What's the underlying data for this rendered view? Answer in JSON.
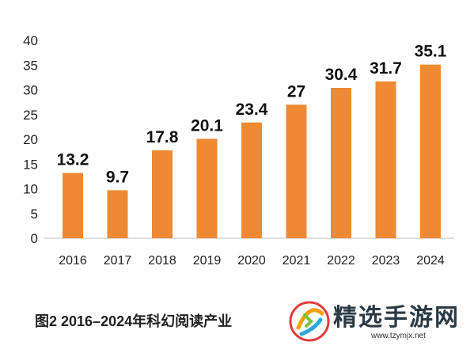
{
  "chart_data": {
    "type": "bar",
    "categories": [
      "2016",
      "2017",
      "2018",
      "2019",
      "2020",
      "2021",
      "2022",
      "2023",
      "2024"
    ],
    "values": [
      13.2,
      9.7,
      17.8,
      20.1,
      23.4,
      27,
      30.4,
      31.7,
      35.1
    ],
    "data_labels": [
      "13.2",
      "9.7",
      "17.8",
      "20.1",
      "23.4",
      "27",
      "30.4",
      "31.7",
      "35.1"
    ],
    "yticks": [
      "0",
      "5",
      "10",
      "15",
      "20",
      "25",
      "30",
      "35",
      "40"
    ],
    "ylim": [
      0,
      40
    ],
    "grid": false,
    "legend": "none",
    "bar_color": "#ed8a33"
  },
  "caption": "图2  2016–2024年科幻阅读产业",
  "watermark": {
    "name": "精选手游网",
    "url": "www.tzymjx.net"
  }
}
